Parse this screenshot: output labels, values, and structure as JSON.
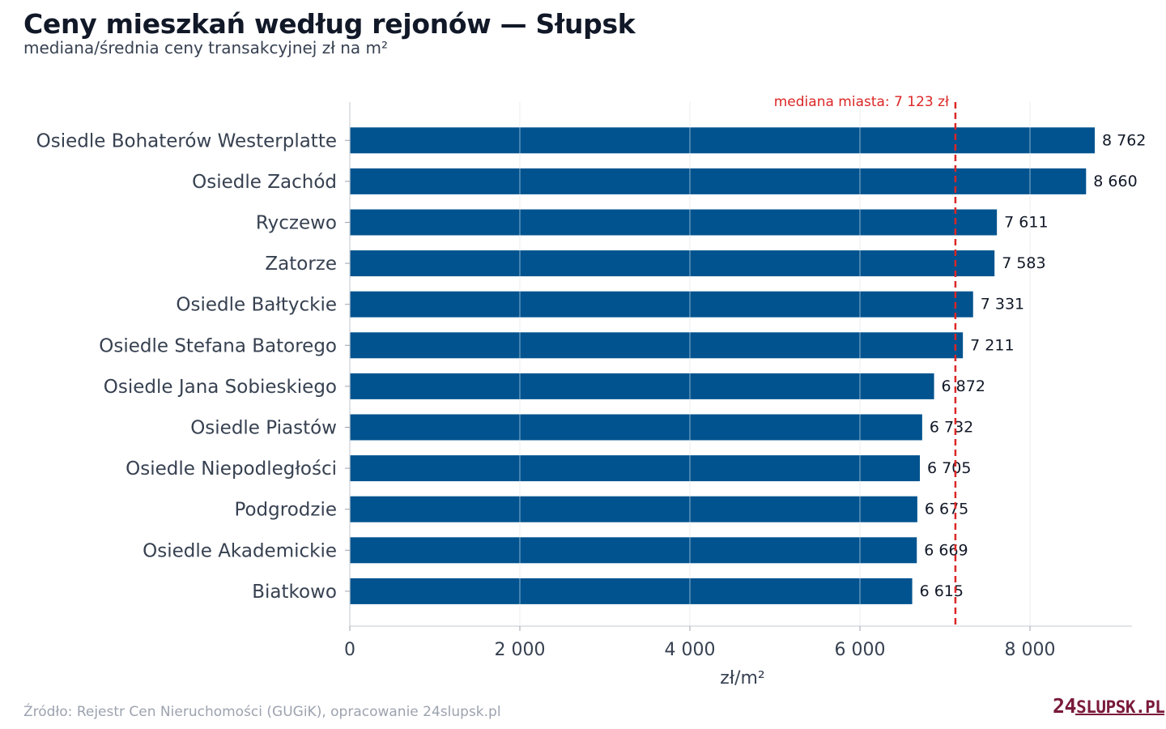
{
  "chart_data": {
    "type": "bar",
    "orientation": "horizontal",
    "title": "Ceny mieszkań według rejonów — Słupsk",
    "subtitle": "mediana/średnia ceny transakcyjnej zł na m²",
    "xlabel": "zł/m²",
    "xlim": [
      0,
      9200
    ],
    "xticks": [
      0,
      2000,
      4000,
      6000,
      8000
    ],
    "xtick_labels": [
      "0",
      "2 000",
      "4 000",
      "6 000",
      "8 000"
    ],
    "grid": "vertical",
    "categories": [
      "Osiedle Bohaterów Westerplatte",
      "Osiedle Zachód",
      "Ryczewo",
      "Zatorze",
      "Osiedle Bałtyckie",
      "Osiedle Stefana Batorego",
      "Osiedle Jana Sobieskiego",
      "Osiedle Piastów",
      "Osiedle Niepodległości",
      "Podgrodzie",
      "Osiedle Akademickie",
      "Biatkowo"
    ],
    "values": [
      8762,
      8660,
      7611,
      7583,
      7331,
      7211,
      6872,
      6732,
      6705,
      6675,
      6669,
      6615
    ],
    "value_labels": [
      "8 762",
      "8 660",
      "7 611",
      "7 583",
      "7 331",
      "7 211",
      "6 872",
      "6 732",
      "6 705",
      "6 675",
      "6 669",
      "6 615"
    ],
    "reference_line": {
      "value": 7123,
      "label": "mediana miasta: 7 123 zł",
      "color": "#dc2626",
      "style": "dashed"
    },
    "bar_color": "#00538f"
  },
  "footer": {
    "source": "Źródło: Rejestr Cen Nieruchomości (GUGiK), opracowanie 24slupsk.pl",
    "logo_num": "24",
    "logo_text": "SLUPSK.PL"
  }
}
